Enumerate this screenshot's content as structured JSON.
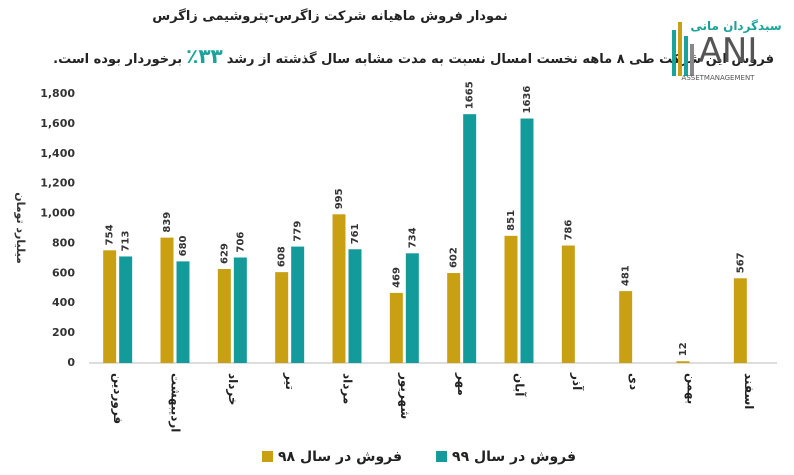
{
  "logo": {
    "name": "سبدگردان مانی",
    "mark": "ANI",
    "tagline": "ASSETMANAGEMENT"
  },
  "chart_data": {
    "type": "bar",
    "title": "نمودار فروش ماهیانه شرکت زاگرس-پتروشیمی زاگرس",
    "subtitle": {
      "before": "فروش این شرکت طی ۸ ماهه نخست امسال نسبت به مدت مشابه سال گذشته از رشد",
      "growth": "۳۳٪",
      "after": "برخوردار بوده است."
    },
    "y_label": "میلیارد تومان",
    "categories": [
      "فروردین",
      "اردیبهشت",
      "خرداد",
      "تیر",
      "مرداد",
      "شهریور",
      "مهر",
      "آبان",
      "آذر",
      "دی",
      "بهمن",
      "اسفند"
    ],
    "series": [
      {
        "name": "فروش در سال ۹۸",
        "color": "#c9a012",
        "values": [
          754,
          839,
          629,
          608,
          995,
          469,
          602,
          851,
          786,
          481,
          12,
          567
        ]
      },
      {
        "name": "فروش در سال ۹۹",
        "color": "#139b9b",
        "values": [
          713,
          680,
          706,
          779,
          761,
          734,
          1665,
          1636,
          null,
          null,
          null,
          null
        ]
      }
    ],
    "ylim": [
      0,
      1800
    ],
    "yticks": [
      0,
      200,
      400,
      600,
      800,
      {
        "value": 1000,
        "label": "1,000"
      },
      {
        "value": 1200,
        "label": "1,200"
      },
      {
        "value": 1400,
        "label": "1,400"
      },
      {
        "value": 1600,
        "label": "1,600"
      },
      {
        "value": 1800,
        "label": "1,800"
      }
    ],
    "grid": false,
    "data_labels": true,
    "legend": "bottom"
  }
}
